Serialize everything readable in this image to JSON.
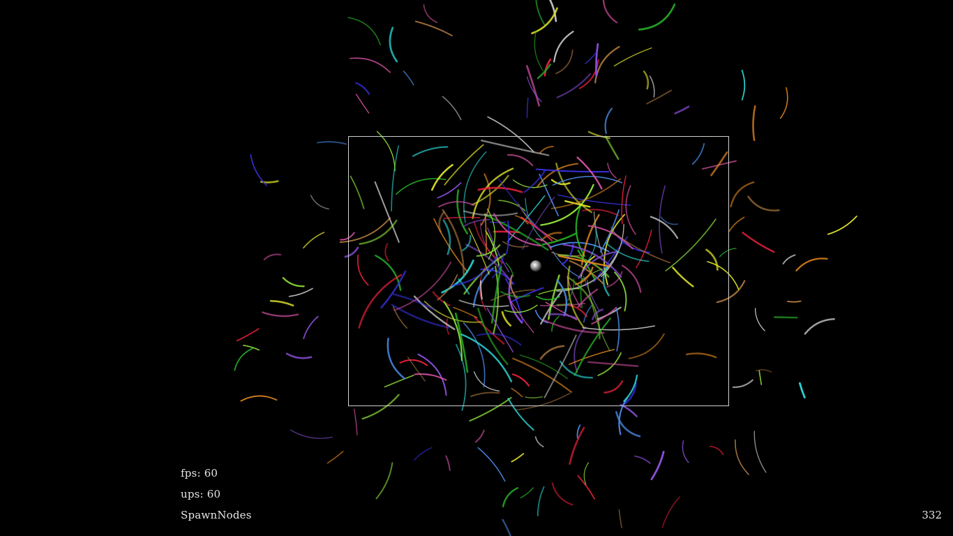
{
  "hud": {
    "fps_label": "fps:",
    "fps_value": "60",
    "ups_label": "ups:",
    "ups_value": "60",
    "mode": "SpawnNodes"
  },
  "node_count": "332",
  "colors": {
    "background": "#000000",
    "bounds_border": "#cfcfcf",
    "text": "#e6e6e6",
    "palette": [
      "#2bd4d4",
      "#e0e52a",
      "#3a32e6",
      "#e6203a",
      "#8a4fd8",
      "#27b327",
      "#e68a1f",
      "#8fe03a",
      "#4a8ae6",
      "#d04fa0",
      "#b07a40",
      "#c8c8c8"
    ]
  },
  "scene": {
    "attractor": "glowing-sphere",
    "bounds": "rectangle"
  }
}
